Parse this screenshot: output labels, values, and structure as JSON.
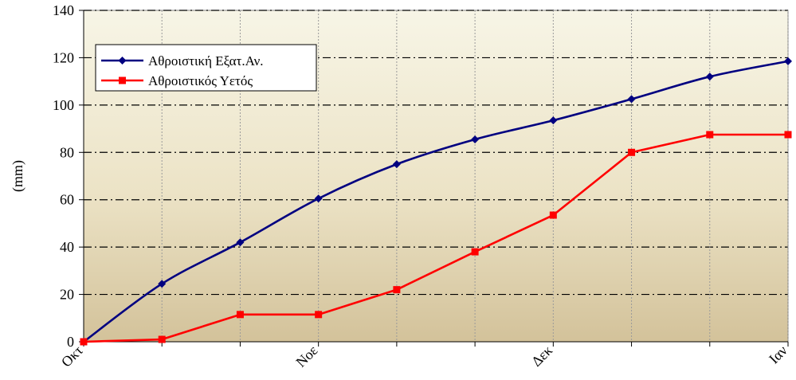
{
  "chart_data": {
    "type": "line",
    "xlabel": "",
    "ylabel": "(mm)",
    "ylim": [
      0,
      140
    ],
    "yticks": [
      0,
      20,
      40,
      60,
      80,
      100,
      120,
      140
    ],
    "x_labels": [
      {
        "index": 0,
        "label": "Οκτ"
      },
      {
        "index": 3,
        "label": "Νοε"
      },
      {
        "index": 6,
        "label": "Δεκ"
      },
      {
        "index": 9,
        "label": "Ιαν"
      }
    ],
    "point_count": 10,
    "grid": true,
    "legend_position": "top-left",
    "series": [
      {
        "name": "Αθροιστική Εξατ.Αν.",
        "color": "#000080",
        "marker": "diamond",
        "values": [
          0,
          24.5,
          42,
          60.5,
          75,
          85.5,
          93.5,
          102.5,
          112,
          118.5
        ]
      },
      {
        "name": "Αθροιστικός Υετός",
        "color": "#ff0000",
        "marker": "square",
        "values": [
          0,
          1,
          11.5,
          11.5,
          22,
          38,
          53.5,
          80,
          87.5,
          87.5
        ]
      }
    ]
  }
}
